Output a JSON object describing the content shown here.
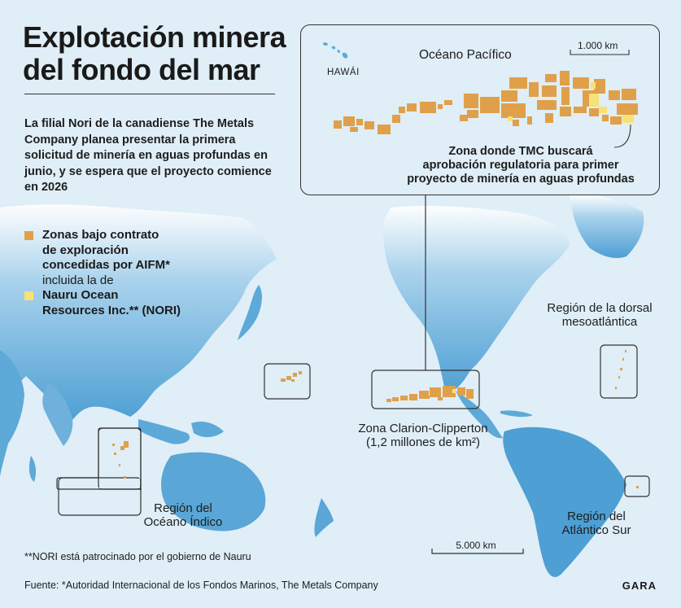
{
  "title": "Explotación minera\ndel fondo del mar",
  "intro": "La filial Nori de la canadiense The Metals Company planea presentar la primera solicitud de minería en aguas profundas en junio, y se espera que el proyecto comience en 2026",
  "legend": {
    "contract_line1": "Zonas bajo contrato",
    "contract_line2": "de exploración",
    "contract_line3": "concedidas por AIFM*",
    "included": "incluida la de",
    "nori_line1": "Nauru Ocean",
    "nori_line2": "Resources Inc.** (NORI)"
  },
  "colors": {
    "ocean": "#dfeef7",
    "land": "#5da9d8",
    "contract_zone": "#e0a04a",
    "nori_zone": "#f7e27a"
  },
  "inset": {
    "ocean_label": "Océano Pacífico",
    "hawaii_label": "HAWÁI",
    "scale_label": "1.000 km",
    "callout_line1": "Zona donde TMC buscará",
    "callout_line2": "aprobación regulatoria para primer",
    "callout_line3": "proyecto de minería en aguas profundas"
  },
  "map": {
    "ccz_label_line1": "Zona Clarion-Clipperton",
    "ccz_label_line2": "(1,2 millones de km²)",
    "indian_label_line1": "Región del",
    "indian_label_line2": "Océano Índico",
    "mar_label_line1": "Región de la dorsal",
    "mar_label_line2": "mesoatlántica",
    "south_atlantic_line1": "Región del",
    "south_atlantic_line2": "Atlántico Sur",
    "scale_label": "5.000 km"
  },
  "footnote": "**NORI está patrocinado por el gobierno de Nauru",
  "source": "Fuente: *Autoridad Internacional de los Fondos Marinos, The Metals Company",
  "brand": "GARA"
}
